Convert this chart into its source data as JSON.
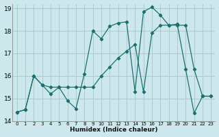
{
  "xlabel": "Humidex (Indice chaleur)",
  "xlim": [
    -0.5,
    23.5
  ],
  "ylim": [
    14,
    19.2
  ],
  "yticks": [
    14,
    15,
    16,
    17,
    18,
    19
  ],
  "xticks": [
    0,
    1,
    2,
    3,
    4,
    5,
    6,
    7,
    8,
    9,
    10,
    11,
    12,
    13,
    14,
    15,
    16,
    17,
    18,
    19,
    20,
    21,
    22,
    23
  ],
  "bg_color": "#cce8ec",
  "grid_color": "#aacccc",
  "line_color": "#1a7070",
  "line1_x": [
    0,
    1,
    2,
    3,
    4,
    5,
    6,
    7,
    8,
    9,
    10,
    11,
    12,
    13,
    14,
    15,
    16,
    17,
    18,
    19,
    20,
    21,
    22,
    23
  ],
  "line1_y": [
    14.4,
    14.5,
    16.0,
    15.6,
    15.2,
    15.5,
    14.9,
    14.55,
    16.1,
    18.0,
    17.65,
    18.2,
    18.35,
    18.4,
    15.3,
    18.85,
    19.05,
    18.7,
    18.25,
    18.3,
    16.3,
    14.35,
    15.1,
    15.1
  ],
  "line2_x": [
    0,
    1,
    2,
    3,
    4,
    5,
    6,
    7,
    8,
    9,
    10,
    11,
    12,
    13,
    14,
    15,
    16,
    17,
    18,
    19,
    20,
    21,
    22,
    23
  ],
  "line2_y": [
    14.4,
    14.5,
    16.0,
    15.6,
    15.5,
    15.5,
    15.5,
    15.5,
    15.5,
    15.5,
    16.0,
    16.4,
    16.8,
    17.1,
    17.4,
    15.3,
    17.9,
    18.25,
    18.25,
    18.25,
    18.25,
    16.3,
    15.1,
    15.1
  ]
}
